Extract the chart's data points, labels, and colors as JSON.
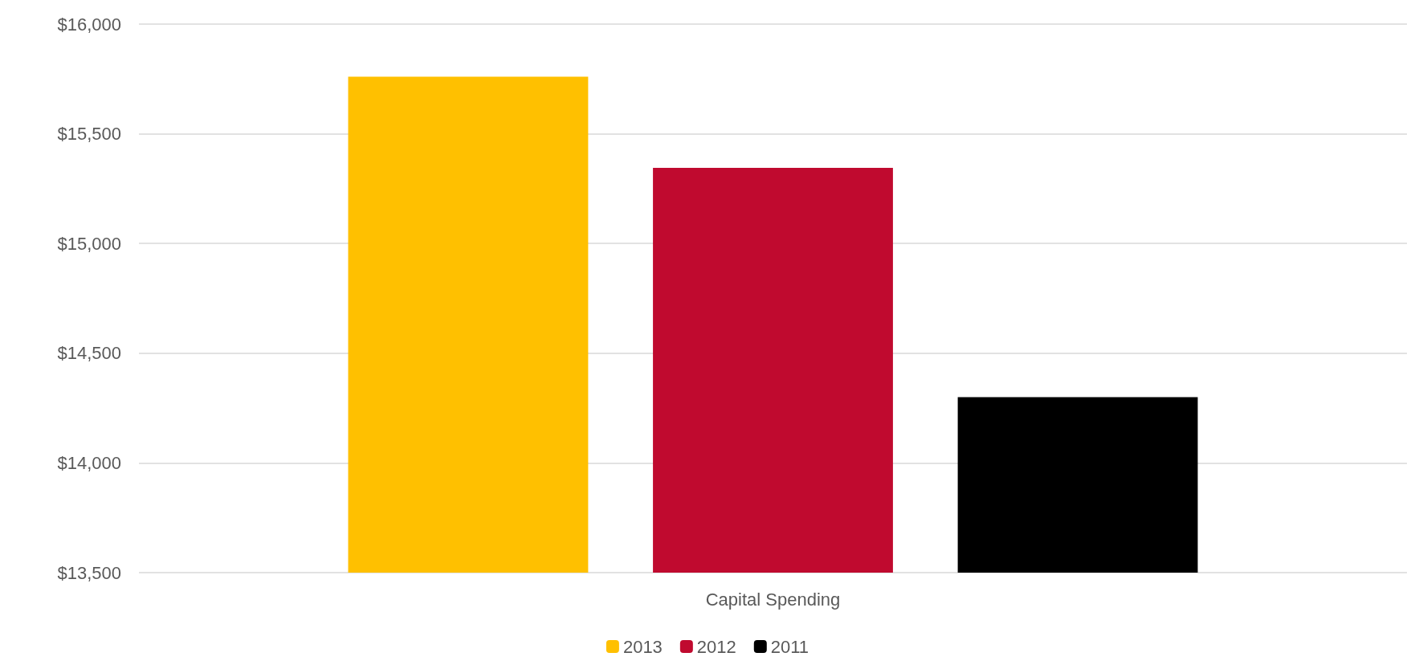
{
  "chart_data": {
    "type": "bar",
    "categories": [
      "Capital Spending"
    ],
    "series": [
      {
        "name": "2013",
        "color": "#ffc000",
        "values": [
          15760
        ]
      },
      {
        "name": "2012",
        "color": "#c00a2f",
        "values": [
          15345
        ]
      },
      {
        "name": "2011",
        "color": "#000000",
        "values": [
          14300
        ]
      }
    ],
    "ylim": [
      13500,
      16000
    ],
    "yticks": [
      {
        "value": 13500,
        "label": "$13,500"
      },
      {
        "value": 14000,
        "label": "$14,000"
      },
      {
        "value": 14500,
        "label": "$14,500"
      },
      {
        "value": 15000,
        "label": "$15,000"
      },
      {
        "value": 15500,
        "label": "$15,500"
      },
      {
        "value": 16000,
        "label": "$16,000"
      }
    ],
    "grid": "y",
    "legend": "bottom"
  }
}
